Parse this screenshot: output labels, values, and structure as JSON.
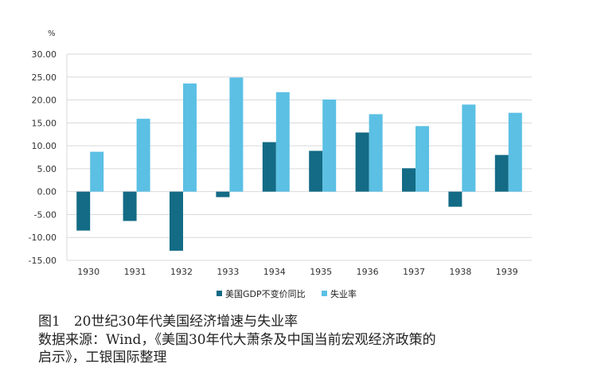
{
  "chart_data": {
    "type": "bar",
    "unit_label": "%",
    "categories": [
      "1930",
      "1931",
      "1932",
      "1933",
      "1934",
      "1935",
      "1936",
      "1937",
      "1938",
      "1939"
    ],
    "series": [
      {
        "name": "美国GDP不变价同比",
        "color": "#136B85",
        "values": [
          -8.5,
          -6.4,
          -12.9,
          -1.2,
          10.8,
          8.9,
          12.9,
          5.1,
          -3.3,
          8.0
        ]
      },
      {
        "name": "失业率",
        "color": "#5BC0E4",
        "values": [
          8.7,
          15.9,
          23.6,
          24.9,
          21.7,
          20.1,
          16.9,
          14.3,
          19.0,
          17.2
        ]
      }
    ],
    "ylim": [
      -15,
      30
    ],
    "y_ticks": [
      "30.00",
      "25.00",
      "20.00",
      "15.00",
      "10.00",
      "5.00",
      "0.00",
      "-5.00",
      "-10.00",
      "-15.00"
    ],
    "grid": true,
    "legend_position": "bottom"
  },
  "caption": {
    "title": "图1　20世纪30年代美国经济增速与失业率",
    "source_line1": "数据来源：Wind，《美国30年代大萧条及中国当前宏观经济政策的",
    "source_line2": "启示》，工银国际整理"
  }
}
